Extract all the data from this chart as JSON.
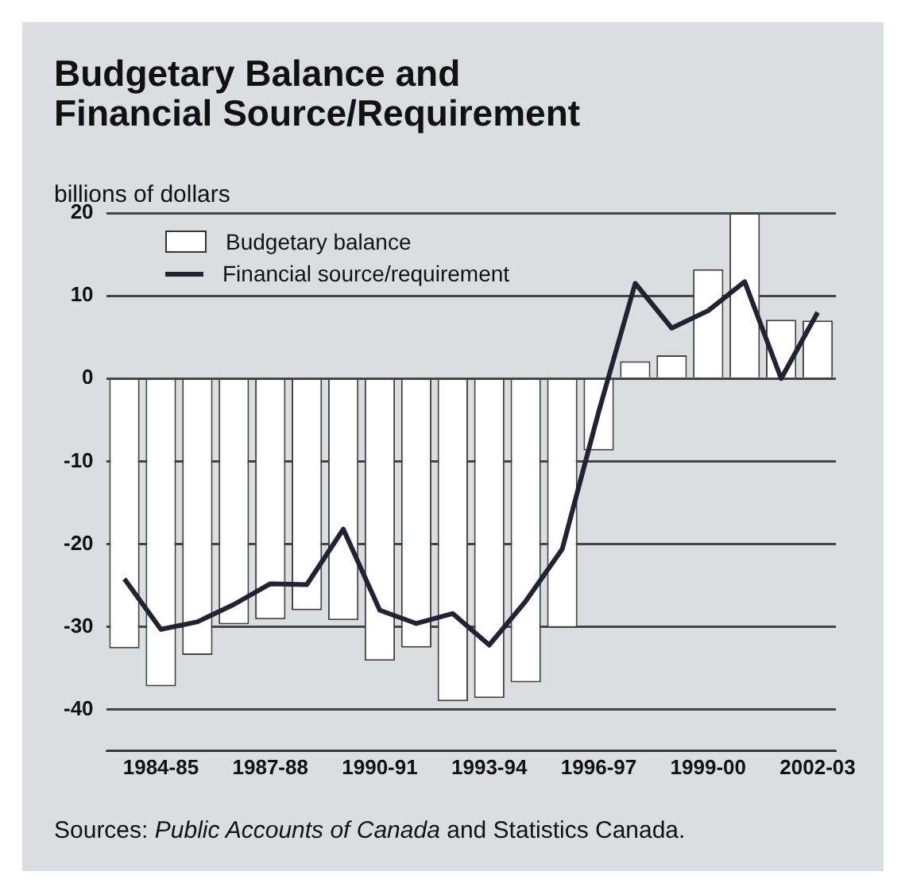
{
  "chart_data": {
    "type": "bar",
    "title": "Budgetary Balance and\nFinancial Source/Requirement",
    "ylabel": "billions of dollars",
    "categories": [
      null,
      "1984-85",
      null,
      null,
      "1987-88",
      null,
      null,
      "1990-91",
      null,
      null,
      "1993-94",
      null,
      null,
      "1996-97",
      null,
      null,
      "1999-00",
      null,
      null,
      "2002-03"
    ],
    "series": [
      {
        "name": "Budgetary balance",
        "color": "#ffffff",
        "values": [
          -32.6,
          -37.2,
          -33.4,
          -29.7,
          -29.1,
          -28.0,
          -29.2,
          -34.1,
          -32.5,
          -39.0,
          -38.6,
          -36.7,
          -30.1,
          -8.7,
          2.1,
          2.8,
          13.2,
          20,
          7.1,
          7.0
        ]
      },
      {
        "name": "Financial source/requirement",
        "type": "line",
        "color": "#222233",
        "values": [
          -24.2,
          -30.3,
          -29.4,
          -27.3,
          -24.8,
          -24.9,
          -18.2,
          -28.0,
          -29.6,
          -28.4,
          -32.2,
          -26.9,
          -20.6,
          -4,
          11.5,
          6.1,
          8.2,
          11.7,
          0,
          8.0
        ]
      }
    ],
    "ylim": [
      -45,
      20
    ],
    "yticks": [
      {
        "value": -45,
        "label": null
      },
      -40,
      -30,
      -20,
      -10,
      0,
      10,
      20
    ],
    "grid": "y",
    "legend": "top left",
    "marker": "none",
    "annotations": [
      "Sources: Public Accounts of Canada and Statistics Canada."
    ]
  }
}
